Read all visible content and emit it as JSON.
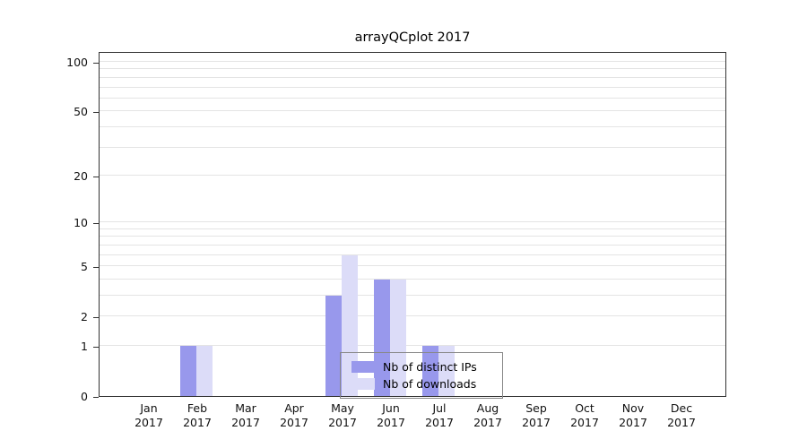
{
  "title": "arrayQCplot 2017",
  "x_year": "2017",
  "chart_data": {
    "type": "bar",
    "title": "arrayQCplot 2017",
    "categories": [
      "Jan",
      "Feb",
      "Mar",
      "Apr",
      "May",
      "Jun",
      "Jul",
      "Aug",
      "Sep",
      "Oct",
      "Nov",
      "Dec"
    ],
    "x_year": "2017",
    "series": [
      {
        "name": "Nb of distinct IPs",
        "color": "#9898ec",
        "values": [
          0,
          1,
          0,
          0,
          3,
          4,
          1,
          0,
          0,
          0,
          0,
          0
        ]
      },
      {
        "name": "Nb of downloads",
        "color": "#dcdcf8",
        "values": [
          0,
          1,
          0,
          0,
          6,
          4,
          1,
          0,
          0,
          0,
          0,
          0
        ]
      }
    ],
    "y_axis": {
      "scale": "log10(1+x)",
      "range": [
        0,
        100
      ],
      "tick_values": [
        0,
        1,
        2,
        5,
        10,
        20,
        50,
        100
      ],
      "minor_gridlines": [
        1,
        2,
        3,
        4,
        5,
        6,
        7,
        8,
        9,
        10,
        20,
        30,
        40,
        50,
        60,
        70,
        80,
        90,
        100
      ]
    },
    "legend": {
      "entries": [
        "Nb of distinct IPs",
        "Nb of downloads"
      ],
      "position": "bottom-center",
      "background": "transparent"
    },
    "grid": true
  }
}
